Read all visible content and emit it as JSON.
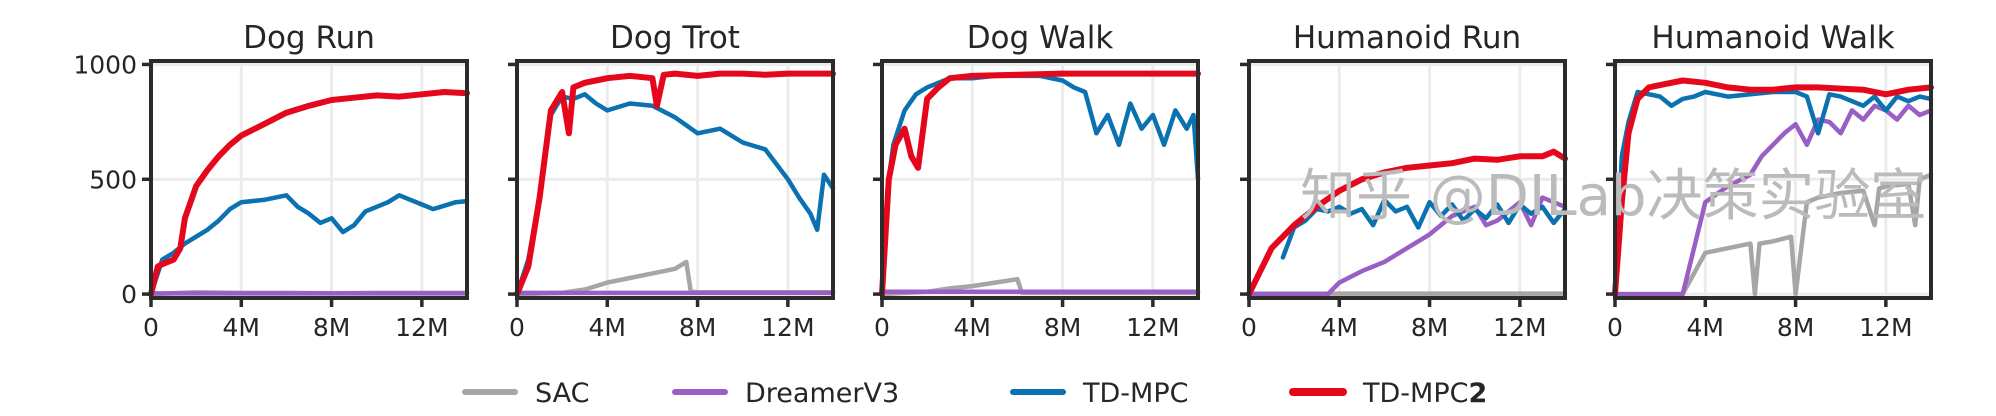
{
  "legend": [
    {
      "name": "SAC",
      "color": "#a6a6a6"
    },
    {
      "name": "DreamerV3",
      "color": "#9a5fc4"
    },
    {
      "name": "TD-MPC",
      "color": "#0a72b0"
    },
    {
      "name": "TD-MPC",
      "bold_suffix": "2",
      "color": "#e5081c"
    }
  ],
  "watermark": "知乎 @DILab决策实验室",
  "chart_data": [
    {
      "type": "line",
      "title": "Dog Run",
      "xlim": [
        0,
        14000000
      ],
      "ylim": [
        -17,
        1015
      ],
      "xticks": [
        0,
        4000000,
        8000000,
        12000000
      ],
      "xtick_labels": [
        "0",
        "4M",
        "8M",
        "12M"
      ],
      "yticks": [
        0,
        500,
        1000
      ],
      "ytick_labels": [
        "0",
        "500",
        "1000"
      ],
      "grid": true,
      "series": [
        {
          "name": "SAC",
          "x": [
            0,
            2,
            4,
            6,
            8,
            10,
            12,
            14
          ],
          "y": [
            0,
            8,
            5,
            5,
            4,
            5,
            5,
            5
          ]
        },
        {
          "name": "DreamerV3",
          "x": [
            0,
            14
          ],
          "y": [
            3,
            3
          ]
        },
        {
          "name": "TD-MPC",
          "x": [
            0,
            0.5,
            1,
            1.5,
            2,
            2.5,
            3,
            3.5,
            4,
            5,
            6,
            6.5,
            7,
            7.5,
            8,
            8.5,
            9,
            9.5,
            10,
            10.5,
            11,
            11.5,
            12,
            12.5,
            13,
            13.5,
            14
          ],
          "y": [
            0,
            150,
            180,
            220,
            250,
            280,
            320,
            370,
            400,
            410,
            430,
            380,
            350,
            310,
            330,
            270,
            300,
            360,
            380,
            400,
            430,
            410,
            390,
            370,
            385,
            400,
            405
          ]
        },
        {
          "name": "TD-MPC2",
          "x": [
            0,
            0.3,
            0.5,
            1,
            1.3,
            1.5,
            2,
            2.5,
            3,
            3.5,
            4,
            5,
            6,
            7,
            8,
            9,
            10,
            11,
            12,
            13,
            14
          ],
          "y": [
            0,
            120,
            130,
            150,
            200,
            330,
            470,
            540,
            600,
            650,
            690,
            740,
            790,
            820,
            845,
            855,
            865,
            860,
            870,
            880,
            875
          ]
        }
      ]
    },
    {
      "type": "line",
      "title": "Dog Trot",
      "xlim": [
        0,
        14000000
      ],
      "ylim": [
        -17,
        1015
      ],
      "xticks": [
        0,
        4000000,
        8000000,
        12000000
      ],
      "xtick_labels": [
        "0",
        "4M",
        "8M",
        "12M"
      ],
      "yticks": [
        0,
        500,
        1000
      ],
      "ytick_labels": [
        "",
        "",
        ""
      ],
      "grid": true,
      "series": [
        {
          "name": "SAC",
          "x": [
            0,
            2,
            3,
            4,
            5,
            6,
            7,
            7.5,
            7.7,
            8,
            10,
            12,
            14
          ],
          "y": [
            0,
            5,
            20,
            50,
            70,
            90,
            110,
            140,
            10,
            8,
            8,
            8,
            8
          ]
        },
        {
          "name": "DreamerV3",
          "x": [
            0,
            14
          ],
          "y": [
            5,
            5
          ]
        },
        {
          "name": "TD-MPC",
          "x": [
            0,
            0.5,
            1,
            1.5,
            2,
            2.5,
            3,
            3.5,
            4,
            5,
            6,
            7,
            8,
            9,
            10,
            11,
            12,
            12.5,
            13,
            13.3,
            13.6,
            14
          ],
          "y": [
            0,
            150,
            420,
            780,
            860,
            850,
            870,
            830,
            800,
            830,
            820,
            770,
            700,
            720,
            660,
            630,
            500,
            420,
            350,
            280,
            520,
            460
          ]
        },
        {
          "name": "TD-MPC2",
          "x": [
            0,
            0.5,
            1,
            1.5,
            2,
            2.3,
            2.5,
            3,
            3.5,
            4,
            5,
            6,
            6.2,
            6.5,
            7,
            8,
            9,
            10,
            11,
            12,
            13,
            14
          ],
          "y": [
            0,
            120,
            420,
            800,
            880,
            700,
            900,
            920,
            930,
            940,
            950,
            940,
            820,
            955,
            960,
            950,
            960,
            960,
            955,
            960,
            960,
            960
          ]
        }
      ]
    },
    {
      "type": "line",
      "title": "Dog Walk",
      "xlim": [
        0,
        14000000
      ],
      "ylim": [
        -17,
        1015
      ],
      "xticks": [
        0,
        4000000,
        8000000,
        12000000
      ],
      "xtick_labels": [
        "0",
        "4M",
        "8M",
        "12M"
      ],
      "yticks": [
        0,
        500,
        1000
      ],
      "ytick_labels": [
        "",
        "",
        ""
      ],
      "grid": true,
      "series": [
        {
          "name": "SAC",
          "x": [
            0,
            2,
            3,
            4,
            5,
            6,
            6.2,
            8,
            10,
            12,
            14
          ],
          "y": [
            0,
            10,
            25,
            35,
            50,
            65,
            5,
            5,
            5,
            5,
            5
          ]
        },
        {
          "name": "DreamerV3",
          "x": [
            0,
            14
          ],
          "y": [
            10,
            10
          ]
        },
        {
          "name": "TD-MPC",
          "x": [
            0,
            0.3,
            0.5,
            1,
            1.5,
            2,
            3,
            4,
            5,
            6,
            7,
            8,
            8.5,
            9,
            9.5,
            10,
            10.5,
            11,
            11.5,
            12,
            12.5,
            13,
            13.5,
            13.8,
            14
          ],
          "y": [
            0,
            500,
            650,
            800,
            870,
            900,
            940,
            940,
            950,
            950,
            950,
            930,
            900,
            880,
            700,
            780,
            650,
            830,
            720,
            780,
            650,
            800,
            720,
            780,
            500
          ]
        },
        {
          "name": "TD-MPC2",
          "x": [
            0,
            0.3,
            0.6,
            1,
            1.3,
            1.6,
            2,
            2.5,
            3,
            4,
            6,
            8,
            10,
            12,
            14
          ],
          "y": [
            0,
            500,
            650,
            720,
            600,
            550,
            850,
            900,
            940,
            950,
            955,
            960,
            960,
            960,
            960
          ]
        }
      ]
    },
    {
      "type": "line",
      "title": "Humanoid Run",
      "xlim": [
        0,
        14000000
      ],
      "ylim": [
        -17,
        1015
      ],
      "xticks": [
        0,
        4000000,
        8000000,
        12000000
      ],
      "xtick_labels": [
        "0",
        "4M",
        "8M",
        "12M"
      ],
      "yticks": [
        0,
        500,
        1000
      ],
      "ytick_labels": [
        "",
        "",
        ""
      ],
      "grid": true,
      "series": [
        {
          "name": "SAC",
          "x": [
            0,
            14
          ],
          "y": [
            2,
            2
          ]
        },
        {
          "name": "DreamerV3",
          "x": [
            0,
            3.5,
            4,
            5,
            6,
            7,
            8,
            9,
            10,
            10.5,
            11,
            12,
            12.5,
            13,
            14
          ],
          "y": [
            0,
            0,
            50,
            100,
            140,
            200,
            260,
            340,
            380,
            300,
            320,
            400,
            300,
            420,
            380
          ]
        },
        {
          "name": "TD-MPC",
          "x": [
            1.5,
            2,
            2.5,
            3,
            3.5,
            4,
            4.5,
            5,
            5.5,
            6,
            6.5,
            7,
            7.5,
            8,
            8.5,
            9,
            9.5,
            10,
            10.5,
            11,
            11.5,
            12,
            12.5,
            13,
            13.5,
            14
          ],
          "y": [
            160,
            290,
            320,
            370,
            360,
            380,
            350,
            370,
            300,
            410,
            360,
            380,
            290,
            400,
            340,
            390,
            320,
            370,
            330,
            390,
            310,
            390,
            350,
            380,
            310,
            370
          ]
        },
        {
          "name": "TD-MPC2",
          "x": [
            0,
            0.5,
            1,
            2,
            3,
            4,
            5,
            6,
            7,
            8,
            9,
            10,
            11,
            12,
            13,
            13.5,
            14
          ],
          "y": [
            0,
            100,
            200,
            300,
            380,
            450,
            500,
            530,
            550,
            560,
            570,
            590,
            585,
            600,
            600,
            620,
            590
          ]
        }
      ]
    },
    {
      "type": "line",
      "title": "Humanoid Walk",
      "xlim": [
        0,
        14000000
      ],
      "ylim": [
        -17,
        1015
      ],
      "xticks": [
        0,
        4000000,
        8000000,
        12000000
      ],
      "xtick_labels": [
        "0",
        "4M",
        "8M",
        "12M"
      ],
      "yticks": [
        0,
        500,
        1000
      ],
      "ytick_labels": [
        "",
        "",
        ""
      ],
      "grid": true,
      "series": [
        {
          "name": "SAC",
          "x": [
            0,
            3,
            4,
            5,
            6,
            6.2,
            6.4,
            7,
            7.8,
            8,
            8.5,
            9,
            9.5,
            10,
            11,
            11.5,
            11.7,
            12,
            13,
            13.3,
            13.5,
            14
          ],
          "y": [
            0,
            0,
            180,
            200,
            220,
            0,
            220,
            230,
            250,
            0,
            400,
            420,
            430,
            440,
            450,
            300,
            460,
            470,
            480,
            300,
            500,
            520
          ]
        },
        {
          "name": "DreamerV3",
          "x": [
            0,
            3,
            3.5,
            4,
            5,
            6,
            6.5,
            7,
            7.5,
            8,
            8.5,
            9,
            9.5,
            10,
            10.5,
            11,
            11.5,
            12,
            12.5,
            13,
            13.5,
            14
          ],
          "y": [
            0,
            0,
            200,
            400,
            470,
            520,
            600,
            650,
            700,
            740,
            650,
            760,
            750,
            700,
            800,
            760,
            820,
            800,
            760,
            820,
            780,
            800
          ]
        },
        {
          "name": "TD-MPC",
          "x": [
            0,
            0.3,
            0.6,
            1,
            1.5,
            2,
            2.5,
            3,
            3.5,
            4,
            5,
            6,
            7,
            8,
            8.5,
            9,
            9.5,
            10,
            11,
            11.5,
            12,
            12.5,
            13,
            13.5,
            14
          ],
          "y": [
            0,
            600,
            750,
            880,
            870,
            860,
            820,
            850,
            860,
            880,
            860,
            870,
            880,
            880,
            860,
            700,
            870,
            860,
            820,
            860,
            800,
            860,
            840,
            860,
            850
          ]
        },
        {
          "name": "TD-MPC2",
          "x": [
            0,
            0.3,
            0.6,
            1,
            1.5,
            2,
            3,
            4,
            5,
            6,
            7,
            8,
            9,
            10,
            11,
            12,
            13,
            14
          ],
          "y": [
            0,
            400,
            700,
            850,
            900,
            910,
            930,
            920,
            900,
            890,
            890,
            900,
            900,
            895,
            890,
            870,
            890,
            900
          ]
        }
      ]
    }
  ]
}
